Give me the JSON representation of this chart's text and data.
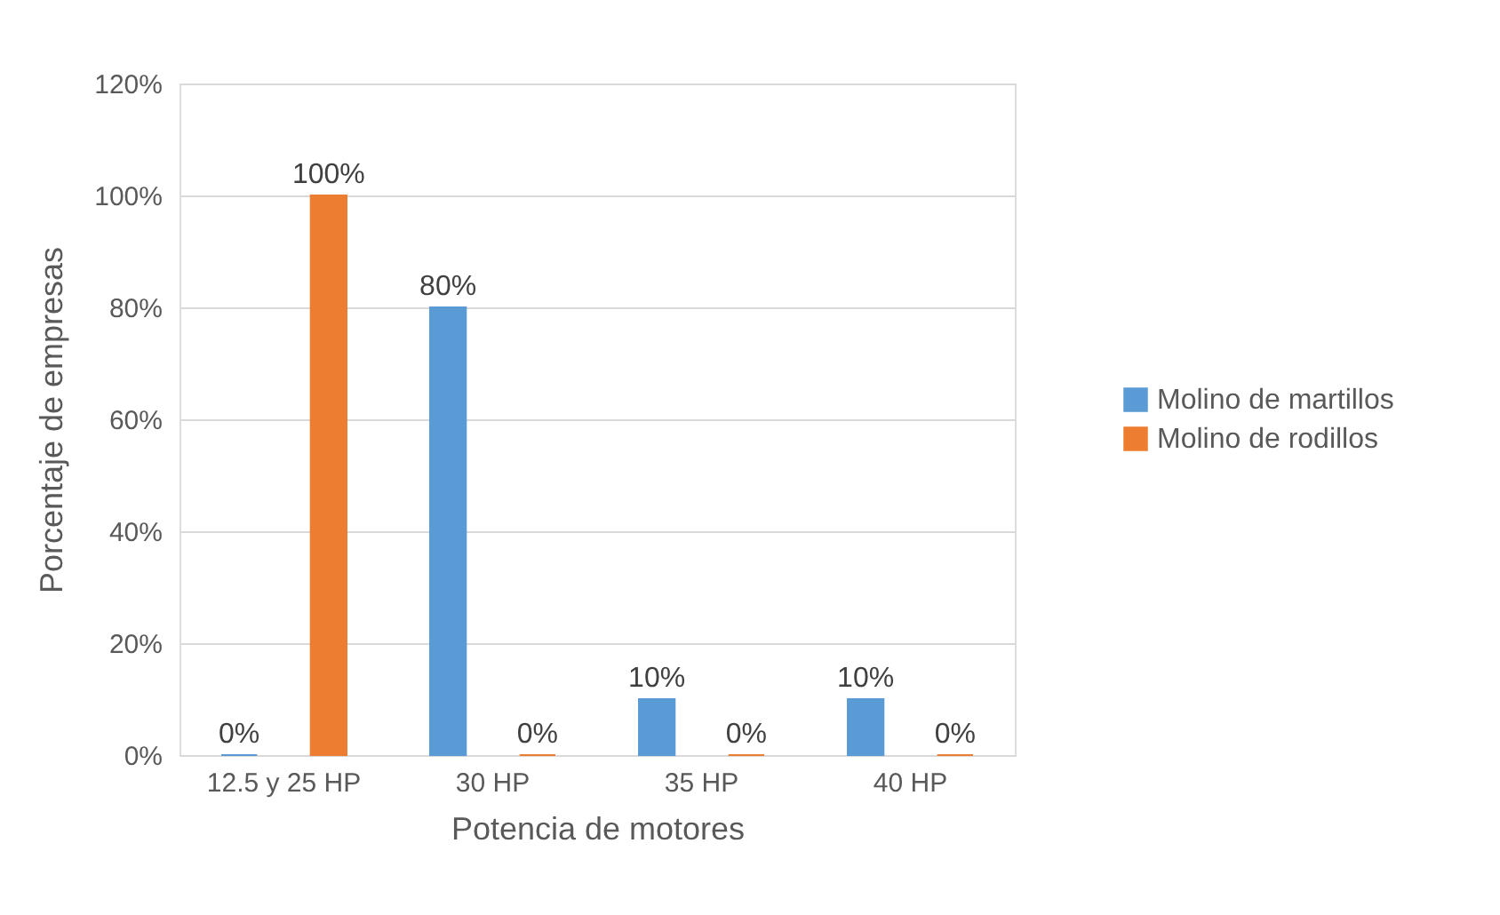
{
  "chart_data": {
    "type": "bar",
    "xlabel": "Potencia de motores",
    "ylabel": "Porcentaje de empresas",
    "categories": [
      "12.5 y 25 HP",
      "30 HP",
      "35 HP",
      "40 HP"
    ],
    "series": [
      {
        "name": "Molino de martillos",
        "color": "#5b9bd5",
        "values": [
          0,
          80,
          10,
          10
        ],
        "value_labels": [
          "0%",
          "80%",
          "10%",
          "10%"
        ]
      },
      {
        "name": "Molino de rodillos",
        "color": "#ed7d31",
        "values": [
          100,
          0,
          0,
          0
        ],
        "value_labels": [
          "100%",
          "0%",
          "0%",
          "0%"
        ]
      }
    ],
    "ylim": [
      0,
      120
    ],
    "yticks": [
      {
        "value": 0,
        "label": "0%"
      },
      {
        "value": 20,
        "label": "20%"
      },
      {
        "value": 40,
        "label": "40%"
      },
      {
        "value": 60,
        "label": "60%"
      },
      {
        "value": 80,
        "label": "80%"
      },
      {
        "value": 100,
        "label": "100%"
      },
      {
        "value": 120,
        "label": "120%"
      }
    ],
    "grid": "y",
    "legend": "right"
  }
}
